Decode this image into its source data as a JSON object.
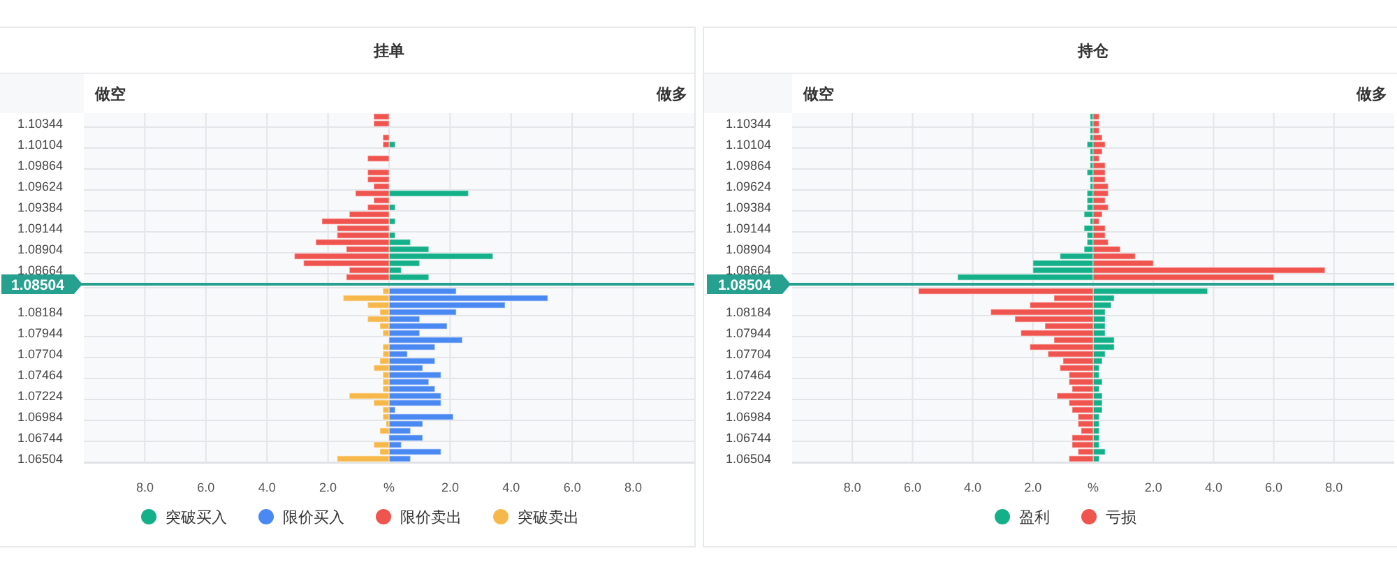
{
  "chart_data": [
    {
      "type": "bar",
      "orientation": "horizontal",
      "stacked": true,
      "title": "挂单",
      "annotations": [
        "做空",
        "做多"
      ],
      "categories": [
        null,
        "1.10344",
        null,
        null,
        "1.10104",
        null,
        null,
        "1.09864",
        null,
        null,
        "1.09624",
        null,
        null,
        "1.09384",
        null,
        null,
        "1.09144",
        null,
        null,
        "1.08904",
        null,
        null,
        "1.08664",
        null,
        "1.08504",
        null,
        null,
        null,
        "1.08184",
        null,
        null,
        "1.07944",
        null,
        null,
        "1.07704",
        null,
        null,
        "1.07464",
        null,
        null,
        "1.07224",
        null,
        null,
        "1.06984",
        null,
        null,
        "1.06744",
        null,
        null,
        "1.06504"
      ],
      "series": [
        {
          "name": "突破买入",
          "color": "#14b089",
          "values": [
            null,
            null,
            null,
            null,
            0.2,
            null,
            null,
            null,
            null,
            null,
            null,
            2.6,
            null,
            0.2,
            null,
            0.2,
            null,
            0.2,
            0.7,
            1.3,
            3.4,
            1.0,
            0.4,
            1.3,
            null,
            null,
            null,
            null,
            null,
            null,
            null,
            null,
            null,
            null,
            null,
            null,
            null,
            null,
            null,
            null,
            null,
            null,
            null,
            null,
            null,
            null,
            null,
            null,
            null,
            null
          ]
        },
        {
          "name": "限价买入",
          "color": "#4a88f2",
          "values": [
            null,
            null,
            null,
            null,
            null,
            null,
            null,
            null,
            null,
            null,
            null,
            null,
            null,
            null,
            null,
            null,
            null,
            null,
            null,
            null,
            null,
            null,
            null,
            null,
            null,
            2.2,
            5.2,
            3.8,
            2.2,
            1.0,
            1.9,
            1.0,
            2.4,
            1.5,
            0.6,
            1.5,
            1.1,
            1.7,
            1.3,
            1.5,
            1.7,
            1.7,
            0.2,
            2.1,
            1.1,
            0.7,
            1.1,
            0.4,
            1.7,
            0.7
          ]
        },
        {
          "name": "限价卖出",
          "color": "#f0544f",
          "values": [
            -0.5,
            -0.5,
            null,
            -0.2,
            -0.2,
            null,
            -0.7,
            null,
            -0.7,
            -0.7,
            -0.5,
            -1.1,
            -0.5,
            -0.7,
            -1.3,
            -2.2,
            -1.7,
            -1.7,
            -2.4,
            -1.4,
            -3.1,
            -2.8,
            -1.3,
            -1.4,
            null,
            null,
            null,
            null,
            null,
            null,
            null,
            null,
            null,
            null,
            null,
            null,
            null,
            null,
            null,
            null,
            null,
            null,
            null,
            null,
            null,
            null,
            null,
            null,
            null,
            null
          ]
        },
        {
          "name": "突破卖出",
          "color": "#f7b84b",
          "values": [
            null,
            null,
            null,
            null,
            null,
            null,
            null,
            null,
            null,
            null,
            null,
            null,
            null,
            null,
            null,
            null,
            null,
            null,
            null,
            null,
            null,
            null,
            null,
            null,
            null,
            -0.2,
            -1.5,
            -0.7,
            -0.3,
            -0.7,
            -0.3,
            -0.2,
            null,
            -0.2,
            -0.2,
            -0.3,
            -0.5,
            -0.2,
            -0.2,
            -0.2,
            -1.3,
            -0.5,
            -0.2,
            -0.2,
            -0.1,
            -0.3,
            null,
            -0.5,
            -0.3,
            -1.7
          ]
        }
      ],
      "xlim": [
        -10,
        10
      ],
      "xticks": [
        {
          "value": -8,
          "label": "8.0"
        },
        {
          "value": -6,
          "label": "6.0"
        },
        {
          "value": -4,
          "label": "4.0"
        },
        {
          "value": -2,
          "label": "2.0"
        },
        {
          "value": 0,
          "label": "%"
        },
        {
          "value": 2,
          "label": "2.0"
        },
        {
          "value": 4,
          "label": "4.0"
        },
        {
          "value": 6,
          "label": "6.0"
        },
        {
          "value": 8,
          "label": "8.0"
        }
      ],
      "grid": true,
      "legend": "bottom",
      "ref_lines": [
        {
          "axis": "y",
          "value": "1.08504",
          "color": "#26a08f"
        }
      ]
    },
    {
      "type": "bar",
      "orientation": "horizontal",
      "stacked": true,
      "title": "持仓",
      "annotations": [
        "做空",
        "做多"
      ],
      "categories": [
        null,
        "1.10344",
        null,
        null,
        "1.10104",
        null,
        null,
        "1.09864",
        null,
        null,
        "1.09624",
        null,
        null,
        "1.09384",
        null,
        null,
        "1.09144",
        null,
        null,
        "1.08904",
        null,
        null,
        "1.08664",
        null,
        "1.08504",
        null,
        null,
        null,
        "1.08184",
        null,
        null,
        "1.07944",
        null,
        null,
        "1.07704",
        null,
        null,
        "1.07464",
        null,
        null,
        "1.07224",
        null,
        null,
        "1.06984",
        null,
        null,
        "1.06744",
        null,
        null,
        "1.06504"
      ],
      "series": [
        {
          "name": "盈利",
          "color": "#14b089",
          "values": [
            -0.1,
            -0.1,
            -0.1,
            -0.1,
            -0.2,
            -0.1,
            -0.1,
            -0.1,
            -0.2,
            -0.1,
            -0.1,
            -0.2,
            -0.2,
            -0.2,
            -0.3,
            -0.1,
            -0.3,
            -0.2,
            -0.2,
            -0.3,
            -1.1,
            -2.0,
            -2.0,
            -4.5,
            null,
            3.8,
            0.7,
            0.6,
            0.4,
            0.4,
            0.4,
            0.4,
            0.7,
            0.7,
            0.4,
            0.3,
            0.2,
            0.2,
            0.3,
            0.2,
            0.3,
            0.3,
            0.3,
            0.2,
            0.2,
            0.2,
            0.2,
            0.2,
            0.4,
            0.2
          ]
        },
        {
          "name": "亏损",
          "color": "#f0544f",
          "values": [
            0.2,
            0.2,
            0.2,
            0.3,
            0.4,
            0.3,
            0.2,
            0.4,
            0.4,
            0.4,
            0.5,
            0.5,
            0.4,
            0.5,
            0.3,
            0.2,
            0.4,
            0.4,
            0.5,
            0.9,
            1.4,
            2.0,
            7.7,
            6.0,
            null,
            -5.8,
            -1.3,
            -2.1,
            -3.4,
            -2.6,
            -1.6,
            -2.4,
            -1.3,
            -2.1,
            -1.5,
            -1.0,
            -1.1,
            -0.8,
            -0.8,
            -0.7,
            -1.2,
            -0.8,
            -0.7,
            -0.5,
            -0.5,
            -0.4,
            -0.7,
            -0.7,
            -0.5,
            -0.8
          ]
        }
      ],
      "xlim": [
        -10,
        10
      ],
      "xticks": [
        {
          "value": -8,
          "label": "8.0"
        },
        {
          "value": -6,
          "label": "6.0"
        },
        {
          "value": -4,
          "label": "4.0"
        },
        {
          "value": -2,
          "label": "2.0"
        },
        {
          "value": 0,
          "label": "%"
        },
        {
          "value": 2,
          "label": "2.0"
        },
        {
          "value": 4,
          "label": "4.0"
        },
        {
          "value": 6,
          "label": "6.0"
        },
        {
          "value": 8,
          "label": "8.0"
        }
      ],
      "grid": true,
      "legend": "bottom",
      "ref_lines": [
        {
          "axis": "y",
          "value": "1.08504",
          "color": "#26a08f"
        }
      ]
    }
  ]
}
